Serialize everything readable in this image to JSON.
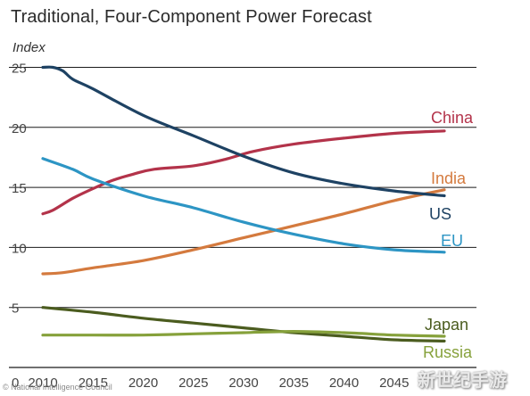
{
  "chart_data": {
    "type": "line",
    "title": "Traditional, Four-Component Power Forecast",
    "ylabel": "Index",
    "xlabel": "",
    "xlim": [
      2008,
      2055
    ],
    "ylim": [
      0,
      25
    ],
    "yticks": [
      0,
      5,
      10,
      15,
      20,
      25
    ],
    "xticks": [
      2010,
      2015,
      2020,
      2025,
      2030,
      2035,
      2040,
      2045
    ],
    "grid": "horizontal",
    "legend": "end-of-line labels",
    "series": [
      {
        "name": "China",
        "color": "#b3334a",
        "points": [
          [
            2010,
            12.8
          ],
          [
            2011,
            13.1
          ],
          [
            2013,
            14.1
          ],
          [
            2015,
            14.9
          ],
          [
            2017,
            15.6
          ],
          [
            2019,
            16.1
          ],
          [
            2021,
            16.5
          ],
          [
            2025,
            16.8
          ],
          [
            2028,
            17.3
          ],
          [
            2031,
            18.0
          ],
          [
            2035,
            18.6
          ],
          [
            2040,
            19.1
          ],
          [
            2045,
            19.5
          ],
          [
            2050,
            19.7
          ]
        ]
      },
      {
        "name": "India",
        "color": "#d47a3e",
        "points": [
          [
            2010,
            7.8
          ],
          [
            2012,
            7.9
          ],
          [
            2015,
            8.3
          ],
          [
            2020,
            8.9
          ],
          [
            2025,
            9.8
          ],
          [
            2030,
            10.8
          ],
          [
            2035,
            11.8
          ],
          [
            2040,
            12.8
          ],
          [
            2045,
            13.9
          ],
          [
            2050,
            14.8
          ]
        ]
      },
      {
        "name": "US",
        "color": "#1e4263",
        "points": [
          [
            2010,
            25.0
          ],
          [
            2011,
            25.0
          ],
          [
            2012,
            24.7
          ],
          [
            2013,
            24.0
          ],
          [
            2015,
            23.2
          ],
          [
            2020,
            21.0
          ],
          [
            2025,
            19.3
          ],
          [
            2030,
            17.6
          ],
          [
            2035,
            16.2
          ],
          [
            2040,
            15.3
          ],
          [
            2045,
            14.7
          ],
          [
            2050,
            14.3
          ]
        ]
      },
      {
        "name": "EU",
        "color": "#2d95c4",
        "points": [
          [
            2010,
            17.4
          ],
          [
            2013,
            16.5
          ],
          [
            2015,
            15.7
          ],
          [
            2020,
            14.3
          ],
          [
            2025,
            13.3
          ],
          [
            2030,
            12.1
          ],
          [
            2035,
            11.1
          ],
          [
            2040,
            10.3
          ],
          [
            2045,
            9.8
          ],
          [
            2050,
            9.6
          ]
        ]
      },
      {
        "name": "Japan",
        "color": "#4b5c1f",
        "points": [
          [
            2010,
            5.0
          ],
          [
            2015,
            4.6
          ],
          [
            2020,
            4.1
          ],
          [
            2025,
            3.7
          ],
          [
            2030,
            3.3
          ],
          [
            2035,
            2.9
          ],
          [
            2040,
            2.6
          ],
          [
            2045,
            2.3
          ],
          [
            2050,
            2.2
          ]
        ]
      },
      {
        "name": "Russia",
        "color": "#86a13b",
        "points": [
          [
            2010,
            2.7
          ],
          [
            2015,
            2.7
          ],
          [
            2020,
            2.7
          ],
          [
            2025,
            2.8
          ],
          [
            2030,
            2.9
          ],
          [
            2035,
            3.0
          ],
          [
            2040,
            2.9
          ],
          [
            2045,
            2.7
          ],
          [
            2050,
            2.6
          ]
        ]
      }
    ]
  },
  "footer": {
    "source": "© National Intelligence Council",
    "watermark": "新世纪手游"
  }
}
